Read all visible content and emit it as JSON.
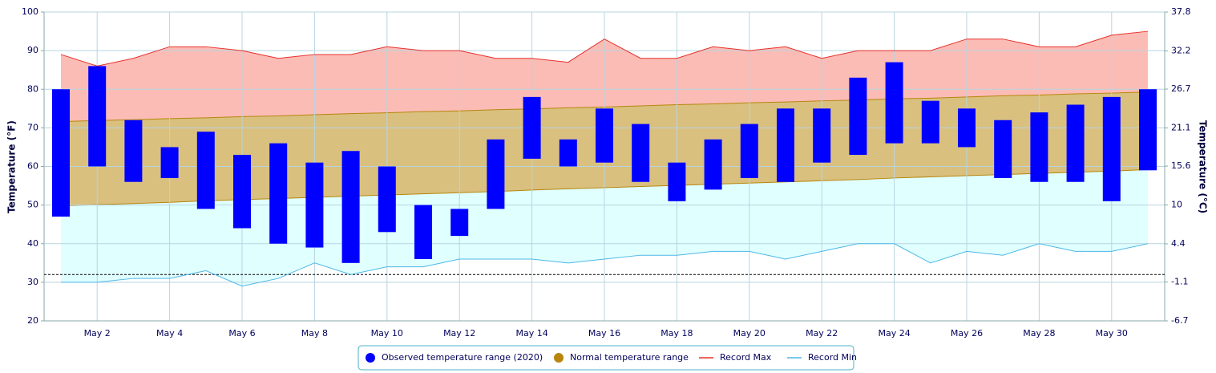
{
  "chart_data": {
    "type": "temperature-range",
    "y_label": "Temperature (°F)",
    "y2_label": "Temperature (°C)",
    "categories": [
      null,
      "May 2",
      null,
      "May 4",
      null,
      "May 6",
      null,
      "May 8",
      null,
      "May 10",
      null,
      "May 12",
      null,
      "May 14",
      null,
      "May 16",
      null,
      "May 18",
      null,
      "May 20",
      null,
      "May 22",
      null,
      "May 24",
      null,
      "May 26",
      null,
      "May 28",
      null,
      "May 30",
      null
    ],
    "ylim": [
      20,
      100
    ],
    "yticks": [
      20,
      30,
      40,
      50,
      60,
      70,
      80,
      90,
      100
    ],
    "y2lim": [
      -6.7,
      37.8
    ],
    "y2ticks": [
      -6.7,
      -1.1,
      4.4,
      10,
      15.6,
      21.1,
      26.7,
      32.2,
      37.8
    ],
    "grid": true,
    "reference_line": 32,
    "legend": "bottom",
    "series": [
      {
        "name": "Observed temperature range (2020)",
        "color": "#0000ff",
        "low": [
          47,
          60,
          56,
          57,
          49,
          44,
          40,
          39,
          35,
          43,
          36,
          42,
          49,
          62,
          60,
          61,
          56,
          51,
          54,
          57,
          56,
          61,
          63,
          66,
          66,
          65,
          57,
          56,
          56,
          51,
          59
        ],
        "high": [
          80,
          86,
          72,
          65,
          69,
          63,
          66,
          61,
          64,
          60,
          50,
          49,
          67,
          78,
          67,
          75,
          71,
          61,
          67,
          71,
          75,
          75,
          83,
          87,
          77,
          75,
          72,
          74,
          76,
          78,
          80
        ]
      },
      {
        "name": "Normal temperature range",
        "color": "#b8860b",
        "low": [
          49.8,
          50.1,
          50.4,
          50.7,
          51.1,
          51.4,
          51.7,
          52.0,
          52.3,
          52.6,
          52.9,
          53.2,
          53.5,
          53.9,
          54.2,
          54.5,
          54.8,
          55.1,
          55.4,
          55.7,
          56.0,
          56.3,
          56.6,
          57.0,
          57.3,
          57.6,
          57.9,
          58.2,
          58.5,
          58.8,
          59.2
        ],
        "high": [
          71.6,
          71.9,
          72.1,
          72.4,
          72.6,
          72.9,
          73.1,
          73.4,
          73.7,
          73.9,
          74.2,
          74.4,
          74.7,
          74.9,
          75.2,
          75.4,
          75.7,
          76.0,
          76.2,
          76.5,
          76.7,
          77.0,
          77.2,
          77.5,
          77.7,
          78.0,
          78.3,
          78.5,
          78.8,
          79.0,
          79.3
        ]
      },
      {
        "name": "Record Max",
        "color": "#e8302a",
        "values": [
          89,
          86,
          88,
          91,
          91,
          90,
          88,
          89,
          89,
          91,
          90,
          90,
          88,
          88,
          87,
          93,
          88,
          88,
          91,
          90,
          91,
          88,
          90,
          90,
          90,
          93,
          93,
          91,
          91,
          94,
          95
        ]
      },
      {
        "name": "Record Min",
        "color": "#4db8e8",
        "values": [
          30,
          30,
          31,
          31,
          33,
          29,
          31,
          35,
          32,
          34,
          34,
          36,
          36,
          36,
          35,
          36,
          37,
          37,
          38,
          38,
          36,
          38,
          40,
          40,
          35,
          38,
          37,
          40,
          38,
          38,
          40
        ]
      }
    ]
  }
}
